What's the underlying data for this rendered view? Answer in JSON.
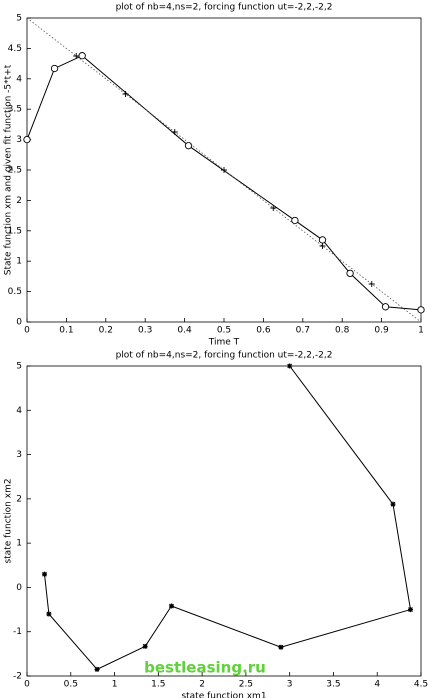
{
  "chart_data": [
    {
      "type": "line",
      "title": "plot of nb=4,ns=2, forcing function ut=-2,2,-2,2",
      "x_label": "Time T",
      "y_label": "State function xm and given fit function -5*t+t",
      "xlim": [
        0,
        1
      ],
      "ylim": [
        0,
        5
      ],
      "xticks": [
        0,
        0.1,
        0.2,
        0.3,
        0.4,
        0.5,
        0.6,
        0.7,
        0.8,
        0.9,
        1
      ],
      "yticks": [
        0,
        0.5,
        1,
        1.5,
        2,
        2.5,
        3,
        3.5,
        4,
        4.5,
        5
      ],
      "series": [
        {
          "color": "#000000",
          "linestyle": "solid",
          "marker": "o",
          "x": [
            0,
            0.07,
            0.14,
            0.41,
            0.68,
            0.75,
            0.82,
            0.91,
            1
          ],
          "values": [
            3.0,
            4.17,
            4.38,
            2.9,
            1.67,
            1.35,
            0.8,
            0.25,
            0.2
          ]
        },
        {
          "color": "#555555",
          "linestyle": "dotted",
          "marker": "none",
          "x": [
            0,
            1
          ],
          "values": [
            5,
            0
          ]
        },
        {
          "color": "#000000",
          "linestyle": "none",
          "marker": "+",
          "x": [
            0.125,
            0.25,
            0.375,
            0.5,
            0.625,
            0.75,
            0.875
          ],
          "values": [
            4.375,
            3.75,
            3.125,
            2.5,
            1.875,
            1.25,
            0.625
          ]
        }
      ]
    },
    {
      "type": "line",
      "title": "plot of nb=4,ns=2, forcing function ut=-2,2,-2,2",
      "x_label": "state function xm1",
      "y_label": "state function xm2",
      "xlim": [
        0,
        4.5
      ],
      "ylim": [
        -2,
        5
      ],
      "xticks": [
        0,
        0.5,
        1,
        1.5,
        2,
        2.5,
        3,
        3.5,
        4,
        4.5
      ],
      "yticks": [
        -2,
        -1,
        0,
        1,
        2,
        3,
        4,
        5
      ],
      "series": [
        {
          "color": "#000000",
          "linestyle": "solid",
          "marker": "*",
          "x": [
            3.0,
            4.18,
            4.38,
            2.9,
            1.65,
            1.35,
            0.8,
            0.25,
            0.2
          ],
          "values": [
            5.0,
            1.88,
            -0.5,
            -1.35,
            -0.42,
            -1.33,
            -1.85,
            -0.6,
            0.3
          ]
        }
      ]
    }
  ],
  "watermark": "bestleasing.ru"
}
